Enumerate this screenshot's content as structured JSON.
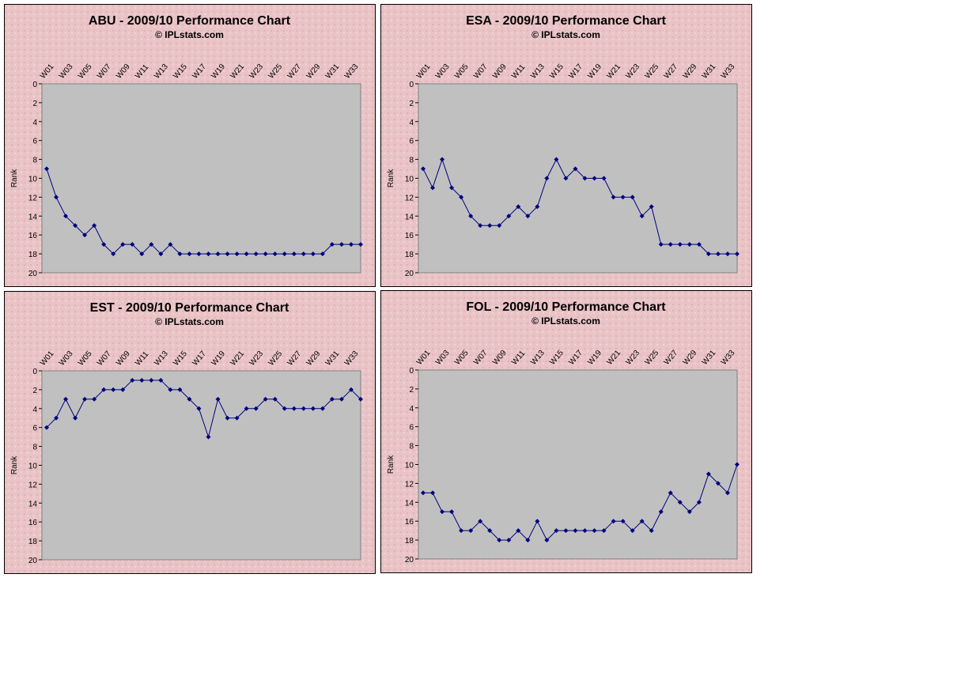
{
  "chart_data": [
    {
      "type": "line",
      "title": "ABU - 2009/10 Performance Chart",
      "subtitle": "© IPLstats.com",
      "y_label": "Rank",
      "categories": [
        "W01",
        null,
        "W03",
        null,
        "W05",
        null,
        "W07",
        null,
        "W09",
        null,
        "W11",
        null,
        "W13",
        null,
        "W15",
        null,
        "W17",
        null,
        "W19",
        null,
        "W21",
        null,
        "W23",
        null,
        "W25",
        null,
        "W27",
        null,
        "W29",
        null,
        "W31",
        null,
        "W33",
        null
      ],
      "series": [
        {
          "name": "ABU",
          "color": "#000080",
          "values": [
            9,
            12,
            14,
            15,
            16,
            15,
            17,
            18,
            17,
            17,
            18,
            17,
            18,
            17,
            18,
            18,
            18,
            18,
            18,
            18,
            18,
            18,
            18,
            18,
            18,
            18,
            18,
            18,
            18,
            18,
            17,
            17,
            17,
            17
          ]
        }
      ],
      "ylim": [
        20,
        0
      ],
      "yticks": [
        0,
        2,
        4,
        6,
        8,
        10,
        12,
        14,
        16,
        18,
        20
      ]
    },
    {
      "type": "line",
      "title": "ESA - 2009/10 Performance Chart",
      "subtitle": "© IPLstats.com",
      "y_label": "Rank",
      "categories": [
        "W01",
        null,
        "W03",
        null,
        "W05",
        null,
        "W07",
        null,
        "W09",
        null,
        "W11",
        null,
        "W13",
        null,
        "W15",
        null,
        "W17",
        null,
        "W19",
        null,
        "W21",
        null,
        "W23",
        null,
        "W25",
        null,
        "W27",
        null,
        "W29",
        null,
        "W31",
        null,
        "W33",
        null
      ],
      "series": [
        {
          "name": "ESA",
          "color": "#000080",
          "values": [
            9,
            11,
            8,
            11,
            12,
            14,
            15,
            15,
            15,
            14,
            13,
            14,
            13,
            10,
            8,
            10,
            9,
            10,
            10,
            10,
            12,
            12,
            12,
            14,
            13,
            17,
            17,
            17,
            17,
            17,
            18,
            18,
            18,
            18
          ]
        }
      ],
      "ylim": [
        20,
        0
      ],
      "yticks": [
        0,
        2,
        4,
        6,
        8,
        10,
        12,
        14,
        16,
        18,
        20
      ]
    },
    {
      "type": "line",
      "title": "EST - 2009/10 Performance Chart",
      "subtitle": "© IPLstats.com",
      "y_label": "Rank",
      "categories": [
        "W01",
        null,
        "W03",
        null,
        "W05",
        null,
        "W07",
        null,
        "W09",
        null,
        "W11",
        null,
        "W13",
        null,
        "W15",
        null,
        "W17",
        null,
        "W19",
        null,
        "W21",
        null,
        "W23",
        null,
        "W25",
        null,
        "W27",
        null,
        "W29",
        null,
        "W31",
        null,
        "W33",
        null
      ],
      "series": [
        {
          "name": "EST",
          "color": "#000080",
          "values": [
            6,
            5,
            3,
            5,
            3,
            3,
            2,
            2,
            2,
            1,
            1,
            1,
            1,
            2,
            2,
            3,
            4,
            7,
            3,
            5,
            5,
            4,
            4,
            3,
            3,
            4,
            4,
            4,
            4,
            4,
            3,
            3,
            2,
            3
          ]
        }
      ],
      "ylim": [
        20,
        0
      ],
      "yticks": [
        0,
        2,
        4,
        6,
        8,
        10,
        12,
        14,
        16,
        18,
        20
      ]
    },
    {
      "type": "line",
      "title": "FOL - 2009/10 Performance Chart",
      "subtitle": "© IPLstats.com",
      "y_label": "Rank",
      "categories": [
        "W01",
        null,
        "W03",
        null,
        "W05",
        null,
        "W07",
        null,
        "W09",
        null,
        "W11",
        null,
        "W13",
        null,
        "W15",
        null,
        "W17",
        null,
        "W19",
        null,
        "W21",
        null,
        "W23",
        null,
        "W25",
        null,
        "W27",
        null,
        "W29",
        null,
        "W31",
        null,
        "W33",
        null
      ],
      "series": [
        {
          "name": "FOL",
          "color": "#000080",
          "values": [
            13,
            13,
            15,
            15,
            17,
            17,
            16,
            17,
            18,
            18,
            17,
            18,
            16,
            18,
            17,
            17,
            17,
            17,
            17,
            17,
            16,
            16,
            17,
            16,
            17,
            15,
            13,
            14,
            15,
            14,
            11,
            12,
            13,
            10
          ]
        }
      ],
      "ylim": [
        20,
        0
      ],
      "yticks": [
        0,
        2,
        4,
        6,
        8,
        10,
        12,
        14,
        16,
        18,
        20
      ]
    }
  ]
}
